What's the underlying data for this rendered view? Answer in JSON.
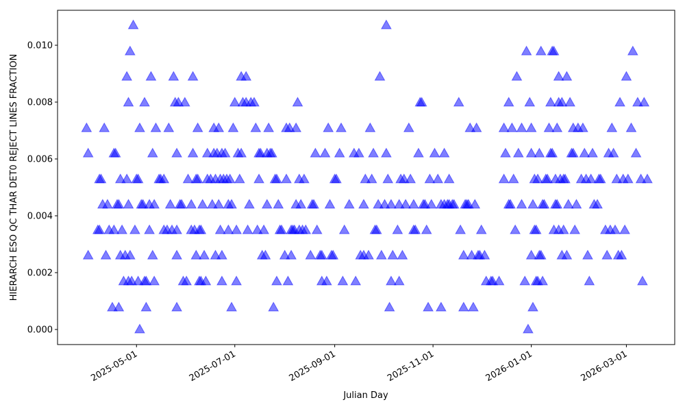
{
  "chart_data": {
    "type": "scatter",
    "x_label": "Julian Day",
    "y_label": "HIERARCH ESO QC THAR DET0 REJECT LINES FRACTION",
    "xlim": [
      "2025-03-13",
      "2026-03-31"
    ],
    "xticks": [
      "2025-05-01",
      "2025-07-01",
      "2025-09-01",
      "2025-11-01",
      "2026-01-01",
      "2026-03-01"
    ],
    "ylim": [
      -0.00053,
      0.01123
    ],
    "yticks": [
      {
        "value": 0,
        "label": "0.000"
      },
      {
        "value": 0.002,
        "label": "0.002"
      },
      {
        "value": 0.004,
        "label": "0.004"
      },
      {
        "value": 0.006,
        "label": "0.006"
      },
      {
        "value": 0.008,
        "label": "0.008"
      },
      {
        "value": 0.01,
        "label": "0.010"
      }
    ],
    "color": "#0000ff",
    "x": [
      "2025-03-31",
      "2025-04-01",
      "2025-04-01",
      "2025-04-07",
      "2025-04-08",
      "2025-04-08",
      "2025-04-09",
      "2025-04-10",
      "2025-04-11",
      "2025-04-12",
      "2025-04-13",
      "2025-04-14",
      "2025-04-16",
      "2025-04-17",
      "2025-04-17",
      "2025-04-18",
      "2025-04-19",
      "2025-04-20",
      "2025-04-20",
      "2025-04-21",
      "2025-04-21",
      "2025-04-22",
      "2025-04-23",
      "2025-04-24",
      "2025-04-25",
      "2025-04-25",
      "2025-04-26",
      "2025-04-26",
      "2025-04-26",
      "2025-04-27",
      "2025-04-27",
      "2025-04-28",
      "2025-04-29",
      "2025-04-30",
      "2025-05-01",
      "2025-05-02",
      "2025-05-02",
      "2025-05-03",
      "2025-05-03",
      "2025-05-04",
      "2025-05-05",
      "2025-05-06",
      "2025-05-06",
      "2025-05-07",
      "2025-05-07",
      "2025-05-09",
      "2025-05-09",
      "2025-05-10",
      "2025-05-11",
      "2025-05-11",
      "2025-05-12",
      "2025-05-12",
      "2025-05-13",
      "2025-05-15",
      "2025-05-16",
      "2025-05-18",
      "2025-05-18",
      "2025-05-20",
      "2025-05-21",
      "2025-05-22",
      "2025-05-23",
      "2025-05-24",
      "2025-05-25",
      "2025-05-26",
      "2025-05-26",
      "2025-05-26",
      "2025-05-26",
      "2025-05-27",
      "2025-05-28",
      "2025-05-29",
      "2025-05-30",
      "2025-05-31",
      "2025-06-01",
      "2025-06-02",
      "2025-06-04",
      "2025-06-04",
      "2025-06-05",
      "2025-06-05",
      "2025-06-06",
      "2025-06-07",
      "2025-06-07",
      "2025-06-08",
      "2025-06-08",
      "2025-06-09",
      "2025-06-09",
      "2025-06-10",
      "2025-06-10",
      "2025-06-11",
      "2025-06-12",
      "2025-06-13",
      "2025-06-14",
      "2025-06-14",
      "2025-06-16",
      "2025-06-17",
      "2025-06-18",
      "2025-06-18",
      "2025-06-19",
      "2025-06-19",
      "2025-06-20",
      "2025-06-21",
      "2025-06-21",
      "2025-06-22",
      "2025-06-22",
      "2025-06-23",
      "2025-06-23",
      "2025-06-23",
      "2025-06-24",
      "2025-06-25",
      "2025-06-26",
      "2025-06-27",
      "2025-06-27",
      "2025-06-28",
      "2025-06-29",
      "2025-06-29",
      "2025-06-30",
      "2025-07-01",
      "2025-07-02",
      "2025-07-02",
      "2025-07-03",
      "2025-07-04",
      "2025-07-05",
      "2025-07-05",
      "2025-07-06",
      "2025-07-08",
      "2025-07-08",
      "2025-07-09",
      "2025-07-10",
      "2025-07-11",
      "2025-07-13",
      "2025-07-14",
      "2025-07-15",
      "2025-07-16",
      "2025-07-16",
      "2025-07-17",
      "2025-07-18",
      "2025-07-19",
      "2025-07-20",
      "2025-07-21",
      "2025-07-21",
      "2025-07-22",
      "2025-07-23",
      "2025-07-24",
      "2025-07-25",
      "2025-07-26",
      "2025-07-27",
      "2025-07-27",
      "2025-07-28",
      "2025-07-29",
      "2025-07-30",
      "2025-08-01",
      "2025-08-02",
      "2025-08-02",
      "2025-08-03",
      "2025-08-04",
      "2025-08-05",
      "2025-08-05",
      "2025-08-06",
      "2025-08-07",
      "2025-08-08",
      "2025-08-08",
      "2025-08-09",
      "2025-08-10",
      "2025-08-10",
      "2025-08-11",
      "2025-08-12",
      "2025-08-13",
      "2025-08-14",
      "2025-08-17",
      "2025-08-18",
      "2025-08-19",
      "2025-08-20",
      "2025-08-21",
      "2025-08-23",
      "2025-08-24",
      "2025-08-24",
      "2025-08-26",
      "2025-08-27",
      "2025-08-28",
      "2025-08-29",
      "2025-08-30",
      "2025-08-31",
      "2025-09-01",
      "2025-09-02",
      "2025-09-04",
      "2025-09-05",
      "2025-09-06",
      "2025-09-07",
      "2025-09-10",
      "2025-09-13",
      "2025-09-14",
      "2025-09-16",
      "2025-09-17",
      "2025-09-19",
      "2025-09-19",
      "2025-09-20",
      "2025-09-22",
      "2025-09-23",
      "2025-09-24",
      "2025-09-25",
      "2025-09-26",
      "2025-09-27",
      "2025-09-28",
      "2025-09-29",
      "2025-09-30",
      "2025-10-02",
      "2025-10-03",
      "2025-10-03",
      "2025-10-04",
      "2025-10-05",
      "2025-10-06",
      "2025-10-06",
      "2025-10-07",
      "2025-10-10",
      "2025-10-11",
      "2025-10-11",
      "2025-10-12",
      "2025-10-13",
      "2025-10-14",
      "2025-10-15",
      "2025-10-17",
      "2025-10-18",
      "2025-10-20",
      "2025-10-20",
      "2025-10-21",
      "2025-10-23",
      "2025-10-24",
      "2025-10-25",
      "2025-10-26",
      "2025-10-27",
      "2025-10-28",
      "2025-10-29",
      "2025-10-30",
      "2025-10-31",
      "2025-11-02",
      "2025-11-04",
      "2025-11-06",
      "2025-11-06",
      "2025-11-08",
      "2025-11-08",
      "2025-11-10",
      "2025-11-11",
      "2025-11-11",
      "2025-11-13",
      "2025-11-14",
      "2025-11-17",
      "2025-11-18",
      "2025-11-20",
      "2025-11-20",
      "2025-11-21",
      "2025-11-22",
      "2025-11-23",
      "2025-11-24",
      "2025-11-25",
      "2025-11-26",
      "2025-11-27",
      "2025-11-28",
      "2025-11-29",
      "2025-11-30",
      "2025-12-01",
      "2025-12-03",
      "2025-12-04",
      "2025-12-07",
      "2025-12-08",
      "2025-12-12",
      "2025-12-15",
      "2025-12-15",
      "2025-12-16",
      "2025-12-18",
      "2025-12-18",
      "2025-12-19",
      "2025-12-20",
      "2025-12-21",
      "2025-12-22",
      "2025-12-23",
      "2025-12-24",
      "2025-12-26",
      "2025-12-26",
      "2025-12-28",
      "2025-12-29",
      "2025-12-30",
      "2025-12-31",
      "2026-01-01",
      "2026-01-01",
      "2026-01-01",
      "2026-01-02",
      "2026-01-02",
      "2026-01-03",
      "2026-01-03",
      "2026-01-04",
      "2026-01-04",
      "2026-01-05",
      "2026-01-05",
      "2026-01-06",
      "2026-01-06",
      "2026-01-07",
      "2026-01-07",
      "2026-01-08",
      "2026-01-08",
      "2026-01-09",
      "2026-01-10",
      "2026-01-11",
      "2026-01-12",
      "2026-01-13",
      "2026-01-13",
      "2026-01-14",
      "2026-01-14",
      "2026-01-15",
      "2026-01-15",
      "2026-01-16",
      "2026-01-16",
      "2026-01-17",
      "2026-01-17",
      "2026-01-18",
      "2026-01-18",
      "2026-01-18",
      "2026-01-19",
      "2026-01-20",
      "2026-01-20",
      "2026-01-21",
      "2026-01-21",
      "2026-01-22",
      "2026-01-23",
      "2026-01-23",
      "2026-01-24",
      "2026-01-25",
      "2026-01-26",
      "2026-01-27",
      "2026-01-27",
      "2026-01-28",
      "2026-01-29",
      "2026-01-30",
      "2026-02-01",
      "2026-02-02",
      "2026-02-03",
      "2026-02-04",
      "2026-02-05",
      "2026-02-06",
      "2026-02-07",
      "2026-02-08",
      "2026-02-09",
      "2026-02-11",
      "2026-02-12",
      "2026-02-13",
      "2026-02-16",
      "2026-02-17",
      "2026-02-18",
      "2026-02-19",
      "2026-02-20",
      "2026-02-21",
      "2026-02-22",
      "2026-02-23",
      "2026-02-24",
      "2026-02-25",
      "2026-02-26",
      "2026-02-27",
      "2026-02-28",
      "2026-03-01",
      "2026-03-02",
      "2026-03-04",
      "2026-03-05",
      "2026-03-07",
      "2026-03-08",
      "2026-03-10",
      "2026-03-11",
      "2026-03-12",
      "2026-03-14"
    ],
    "values": [
      0.00708,
      0.00619,
      0.0026,
      0.00349,
      0.00528,
      0.00349,
      0.00528,
      0.00439,
      0.00708,
      0.0026,
      0.00439,
      0.00349,
      0.00077,
      0.00349,
      0.00619,
      0.00619,
      0.00439,
      0.00077,
      0.00439,
      0.0026,
      0.00528,
      0.00349,
      0.00169,
      0.0026,
      0.00889,
      0.00528,
      0.00169,
      0.00798,
      0.00439,
      0.00978,
      0.0026,
      0.00169,
      0.0107,
      0.00349,
      0.00528,
      0.00528,
      0.00169,
      0,
      0.00708,
      0.00439,
      0.00439,
      0.00169,
      0.00798,
      0.00077,
      0.00169,
      0.00439,
      0.00349,
      0.00889,
      0.0026,
      0.00619,
      0.00439,
      0.00169,
      0.00708,
      0.00528,
      0.00528,
      0.00528,
      0.00349,
      0.00349,
      0.00708,
      0.00439,
      0.00349,
      0.00889,
      0.00798,
      0.00349,
      0.00619,
      0.00077,
      0.0026,
      0.00798,
      0.00439,
      0.00439,
      0.00169,
      0.00798,
      0.00169,
      0.00528,
      0.00439,
      0.00349,
      0.00619,
      0.00889,
      0.00349,
      0.0026,
      0.00528,
      0.00528,
      0.00708,
      0.00169,
      0.00349,
      0.00169,
      0.00349,
      0.00439,
      0.0026,
      0.00169,
      0.00528,
      0.00619,
      0.00528,
      0.00439,
      0.00708,
      0.00619,
      0.00528,
      0.0026,
      0.00619,
      0.00439,
      0.00708,
      0.00349,
      0.00528,
      0.00619,
      0.0026,
      0.00169,
      0.00528,
      0.00619,
      0.00528,
      0.00349,
      0.00439,
      0.00528,
      0.00439,
      0.00077,
      0.00708,
      0.00798,
      0.00169,
      0.00349,
      0.00619,
      0.00528,
      0.00889,
      0.00619,
      0.00798,
      0.00889,
      0.00798,
      0.00349,
      0.00439,
      0.00798,
      0.00798,
      0.00708,
      0.00349,
      0.00528,
      0.00619,
      0.00619,
      0.0026,
      0.00349,
      0.0026,
      0.00619,
      0.00439,
      0.00708,
      0.00619,
      0.00619,
      0.00077,
      0.00528,
      0.00528,
      0.00169,
      0.00439,
      0.00349,
      0.00349,
      0.0026,
      0.00528,
      0.00708,
      0.00169,
      0.00708,
      0.00349,
      0.0026,
      0.00349,
      0.00349,
      0.00708,
      0.00439,
      0.00798,
      0.00528,
      0.00349,
      0.00439,
      0.00349,
      0.00528,
      0.00349,
      0.0026,
      0.00439,
      0.00439,
      0.00619,
      0.00349,
      0.0026,
      0.00169,
      0.0026,
      0.00619,
      0.00169,
      0.00708,
      0.00439,
      0.0026,
      0.0026,
      0.00528,
      0.00528,
      0.00619,
      0.00708,
      0.00169,
      0.00349,
      0.00439,
      0.00619,
      0.00169,
      0.00619,
      0.0026,
      0.0026,
      0.00439,
      0.00528,
      0.0026,
      0.00708,
      0.00528,
      0.00619,
      0.00349,
      0.00349,
      0.00439,
      0.00889,
      0.0026,
      0.00439,
      0.0107,
      0.00619,
      0.00528,
      0.00077,
      0.00439,
      0.00169,
      0.0026,
      0.00349,
      0.00439,
      0.00169,
      0.00528,
      0.0026,
      0.00528,
      0.00439,
      0.00708,
      0.00528,
      0.00439,
      0.00349,
      0.00349,
      0.00619,
      0.00798,
      0.00798,
      0.00439,
      0.00439,
      0.00349,
      0.00077,
      0.00528,
      0.00439,
      0.00619,
      0.00528,
      0.00077,
      0.00439,
      0.00619,
      0.00439,
      0.00439,
      0.00528,
      0.00439,
      0.00439,
      0.00439,
      0.00798,
      0.00349,
      0.00077,
      0.0026,
      0.00439,
      0.00439,
      0.00439,
      0.00708,
      0.0026,
      0.00077,
      0.00439,
      0.00708,
      0.0026,
      0.0026,
      0.00349,
      0.0026,
      0.00169,
      0.00169,
      0.00169,
      0.00169,
      0.00528,
      0.00708,
      0.00619,
      0.00798,
      0.00439,
      0.00439,
      0.00708,
      0.00528,
      0.00349,
      0.00889,
      0.00619,
      0.00439,
      0.00708,
      0.00169,
      0.00978,
      0,
      0.00798,
      0.0026,
      0.00708,
      0.00619,
      0.00077,
      0.00439,
      0.00528,
      0.00349,
      0.00349,
      0.00169,
      0.00169,
      0.00528,
      0.0026,
      0.00619,
      0.0026,
      0.00978,
      0.00439,
      0.00169,
      0.00439,
      0.00528,
      0.00528,
      0.00708,
      0.00798,
      0.00619,
      0.00619,
      0.00978,
      0.00349,
      0.00978,
      0.00439,
      0.00528,
      0.00708,
      0.00439,
      0.00889,
      0.00349,
      0.00798,
      0.00528,
      0.00798,
      0.0026,
      0.00349,
      0.00528,
      0.00528,
      0.0026,
      0.00889,
      0.00439,
      0.00798,
      0.00619,
      0.00619,
      0.00708,
      0.00349,
      0.00439,
      0.00708,
      0.00528,
      0.00708,
      0.00619,
      0.00528,
      0.0026,
      0.00169,
      0.00528,
      0.00619,
      0.00439,
      0.00439,
      0.00528,
      0.00528,
      0.00349,
      0.0026,
      0.00619,
      0.00349,
      0.00708,
      0.00619,
      0.00349,
      0.00528,
      0.0026,
      0.00798,
      0.0026,
      0.00528,
      0.00349,
      0.00889,
      0.00528,
      0.00708,
      0.00978,
      0.00619,
      0.00798,
      0.00528,
      0.00169,
      0.00798,
      0.00528
    ]
  }
}
